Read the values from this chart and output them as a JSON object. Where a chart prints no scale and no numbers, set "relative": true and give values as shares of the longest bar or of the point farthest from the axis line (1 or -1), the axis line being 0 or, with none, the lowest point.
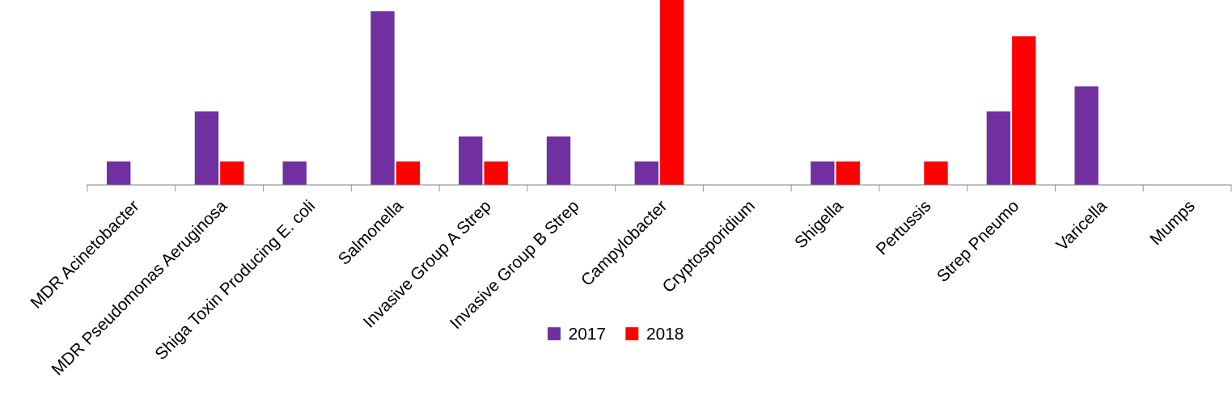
{
  "chart_data": {
    "type": "bar",
    "relative": true,
    "categories": [
      "MDR Acinetobacter",
      "MDR Pseudomonas Aeruginosa",
      "Shiga Toxin Producing E. coli",
      "Salmonella",
      "Invasive Group A Strep",
      "Invasive Group B Strep",
      "Campylobacter",
      "Cryptosporidium",
      "Shigella",
      "Pertussis",
      "Strep Pneumo",
      "Varicella",
      "Mumps"
    ],
    "series": [
      {
        "name": "2017",
        "color": "#7030a0",
        "values": [
          0.127,
          0.397,
          0.127,
          0.939,
          0.262,
          0.262,
          0.127,
          0,
          0.127,
          0,
          0.397,
          0.533,
          0
        ]
      },
      {
        "name": "2018",
        "color": "#ff0000",
        "values": [
          0,
          0.127,
          0,
          0.127,
          0.127,
          0,
          1,
          0,
          0.127,
          0.127,
          0.803,
          0,
          0
        ]
      }
    ],
    "legend": "bottom",
    "grid": false
  }
}
